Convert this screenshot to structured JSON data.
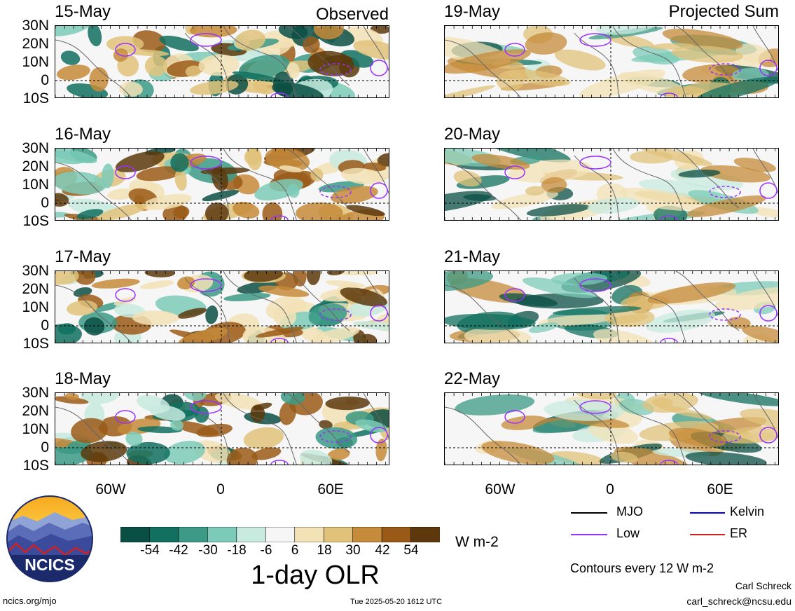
{
  "columns": {
    "left_title": "Observed",
    "right_title": "Projected Sum"
  },
  "panels": {
    "observed": [
      {
        "date": "15-May"
      },
      {
        "date": "16-May"
      },
      {
        "date": "17-May"
      },
      {
        "date": "18-May"
      }
    ],
    "projected": [
      {
        "date": "19-May"
      },
      {
        "date": "20-May"
      },
      {
        "date": "21-May"
      },
      {
        "date": "22-May"
      }
    ]
  },
  "lat_ticks": [
    "30N",
    "20N",
    "10N",
    "0",
    "10S"
  ],
  "lon_ticks": [
    "60W",
    "0",
    "60E"
  ],
  "colorbar": {
    "ticks": [
      "-54",
      "-42",
      "-30",
      "-18",
      "-6",
      "6",
      "18",
      "30",
      "42",
      "54"
    ],
    "colors": [
      "#0a4f44",
      "#11705f",
      "#3c9a86",
      "#7ccbb8",
      "#c8eadf",
      "#f6f6f6",
      "#f2e2b6",
      "#e0c27a",
      "#c58b3a",
      "#9a5a17",
      "#5c380c"
    ],
    "units": "W m-2",
    "title": "1-day OLR"
  },
  "legend": {
    "items": [
      {
        "label": "MJO",
        "color": "#000000"
      },
      {
        "label": "Kelvin",
        "color": "#0000ee"
      },
      {
        "label": "Low",
        "color": "#9b30ff"
      },
      {
        "label": "ER",
        "color": "#d42020"
      }
    ],
    "contours_note": "Contours every 12 W m-2"
  },
  "footer": {
    "site": "ncics.org/mjo",
    "timestamp": "Tue 2025-05-20 1612 UTC",
    "author": "Carl Schreck",
    "email": "carl_schreck@ncsu.edu",
    "logo_text": "NCICS"
  }
}
